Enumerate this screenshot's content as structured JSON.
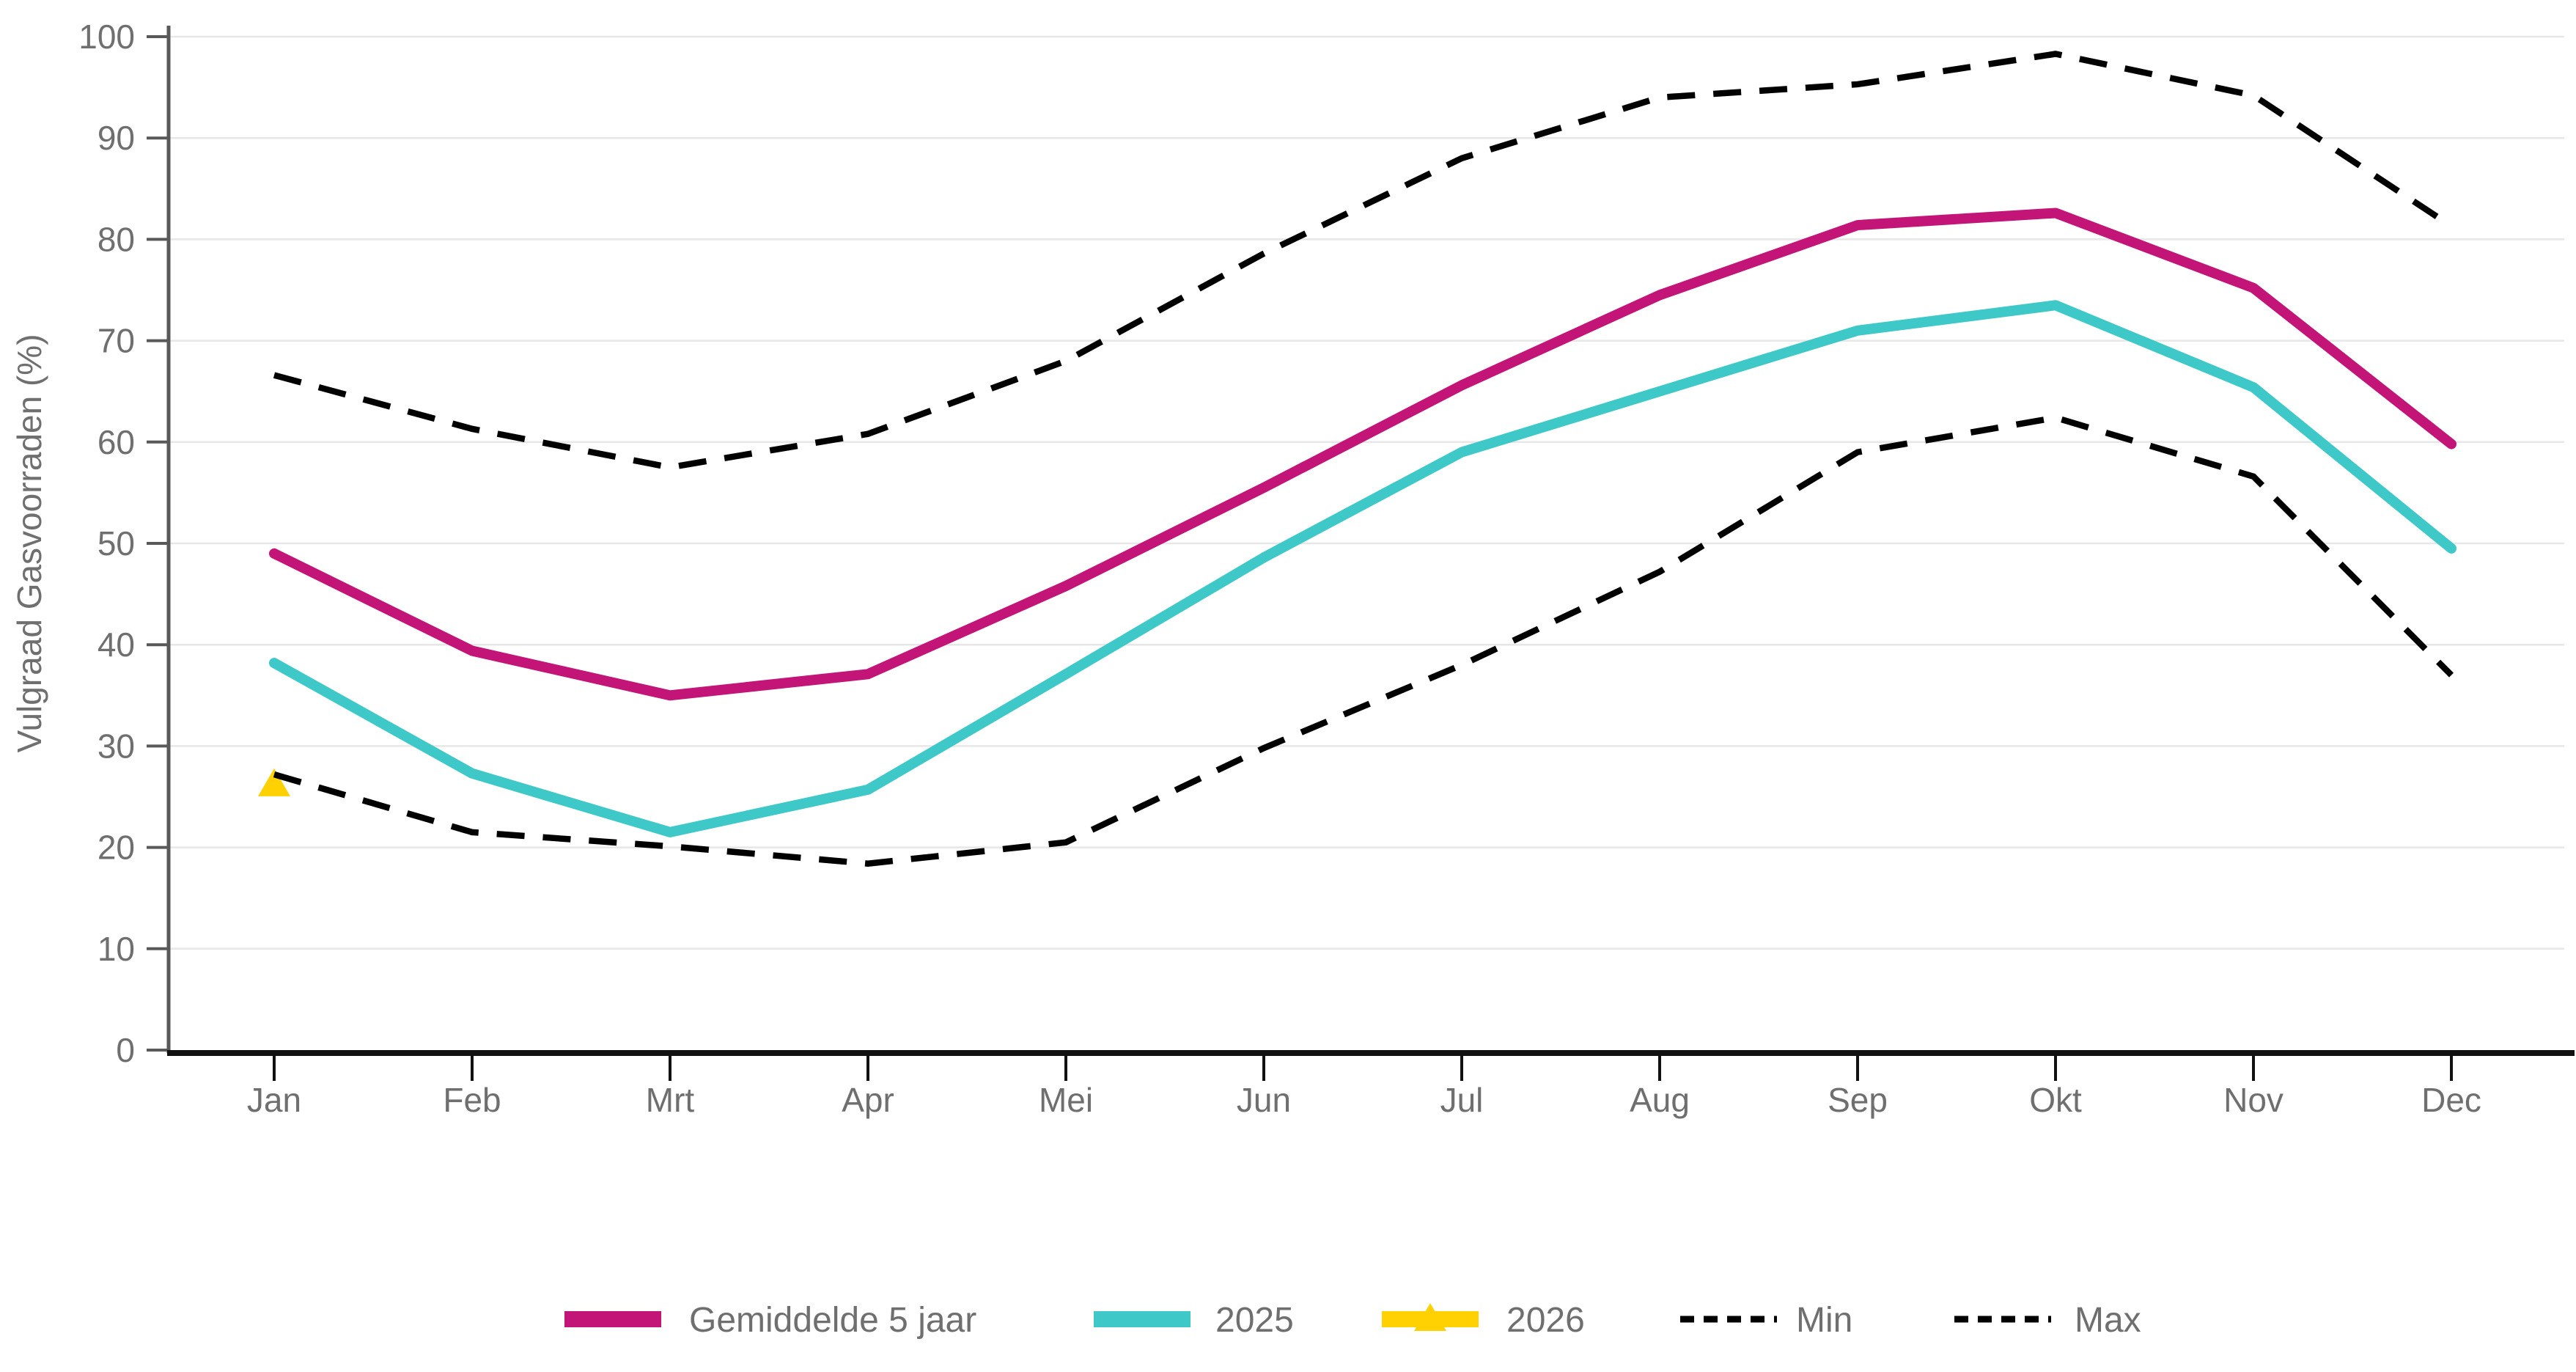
{
  "chart_data": {
    "type": "line",
    "title": "",
    "xlabel": "",
    "ylabel": "Vulgraad Gasvoorraden (%)",
    "ylim": [
      0,
      100
    ],
    "ytick_step": 10,
    "y_ticks": [
      "0",
      "10",
      "20",
      "30",
      "40",
      "50",
      "60",
      "70",
      "80",
      "90",
      "100"
    ],
    "grid": "horizontal",
    "legend_position": "bottom",
    "categories": [
      "Jan",
      "Feb",
      "Mrt",
      "Apr",
      "Mei",
      "Jun",
      "Jul",
      "Aug",
      "Sep",
      "Okt",
      "Nov",
      "Dec"
    ],
    "series": [
      {
        "name": "Gemiddelde 5 jaar",
        "style": "solid",
        "color": "#C31577",
        "marker": "none",
        "values": [
          49.0,
          39.4,
          35.0,
          37.1,
          45.8,
          55.5,
          65.6,
          74.5,
          81.4,
          82.6,
          75.2,
          59.8
        ]
      },
      {
        "name": "2025",
        "style": "solid",
        "color": "#3EC8C8",
        "marker": "none",
        "values": [
          38.2,
          27.3,
          21.5,
          25.7,
          37.1,
          48.6,
          59.0,
          65.0,
          71.0,
          73.5,
          65.4,
          49.5
        ]
      },
      {
        "name": "2026",
        "style": "solid",
        "color": "#FFD103",
        "marker": "triangle",
        "values": [
          26.2,
          null,
          null,
          null,
          null,
          null,
          null,
          null,
          null,
          null,
          null,
          null
        ]
      },
      {
        "name": "Min",
        "style": "dashed",
        "color": "#000000",
        "marker": "none",
        "values": [
          27.2,
          21.5,
          20.1,
          18.4,
          20.5,
          29.8,
          38.0,
          47.2,
          59.0,
          62.4,
          56.6,
          37.0
        ]
      },
      {
        "name": "Max",
        "style": "dashed",
        "color": "#000000",
        "marker": "none",
        "values": [
          66.6,
          61.3,
          57.5,
          60.8,
          68.0,
          78.6,
          88.0,
          94.0,
          95.3,
          98.3,
          94.2,
          81.3
        ]
      }
    ]
  },
  "style": {
    "background": "#ffffff",
    "grid_color": "#e7e7e7",
    "y_axis_color": "#595959",
    "x_axis_color": "#111111",
    "text_color": "#6f6f6f",
    "accent_magenta": "#C31577",
    "accent_cyan": "#3EC8C8",
    "accent_yellow": "#FFD103",
    "dashed_color": "#000000"
  }
}
